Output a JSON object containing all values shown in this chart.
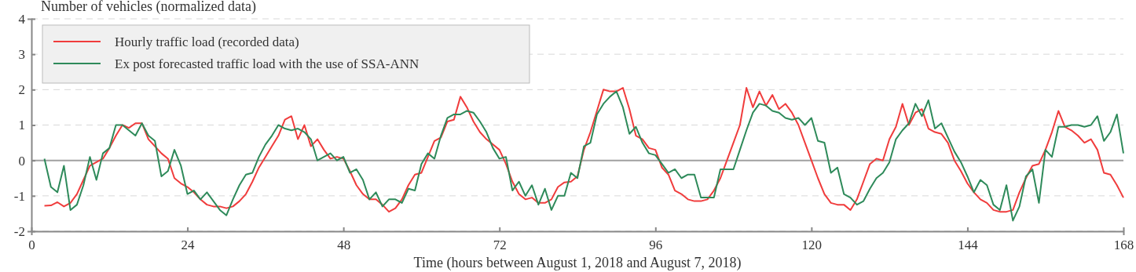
{
  "chart_data": {
    "type": "line",
    "xlabel": "Time (hours between August 1, 2018 and August 7, 2018)",
    "ylabel": "Number of vehicles (normalized data)",
    "xlim": [
      0,
      168
    ],
    "xticks": [
      0,
      24,
      48,
      72,
      96,
      120,
      144,
      168
    ],
    "ylim": [
      -2,
      4
    ],
    "yticks": [
      -2,
      -1,
      0,
      1,
      2,
      3,
      4
    ],
    "grid": "y",
    "legend": "top left",
    "ref_lines": [
      {
        "axis": "y",
        "value": 0,
        "color": "#a0a0a0"
      }
    ],
    "series": [
      {
        "name": "Hourly traffic load (recorded data)",
        "color": "#f03c3c",
        "x": [
          2,
          3,
          4,
          5,
          6,
          7,
          8,
          9,
          10,
          11,
          12,
          13,
          14,
          15,
          16,
          17,
          18,
          19,
          20,
          21,
          22,
          23,
          24,
          25,
          26,
          27,
          28,
          29,
          30,
          31,
          32,
          33,
          34,
          35,
          36,
          37,
          38,
          39,
          40,
          41,
          42,
          43,
          44,
          45,
          46,
          47,
          48,
          49,
          50,
          51,
          52,
          53,
          54,
          55,
          56,
          57,
          58,
          59,
          60,
          61,
          62,
          63,
          64,
          65,
          66,
          67,
          68,
          69,
          70,
          71,
          72,
          73,
          74,
          75,
          76,
          77,
          78,
          79,
          80,
          81,
          82,
          83,
          84,
          85,
          86,
          87,
          88,
          89,
          90,
          91,
          92,
          93,
          94,
          95,
          96,
          97,
          98,
          99,
          100,
          101,
          102,
          103,
          104,
          105,
          106,
          107,
          108,
          109,
          110,
          111,
          112,
          113,
          114,
          115,
          116,
          117,
          118,
          119,
          120,
          121,
          122,
          123,
          124,
          125,
          126,
          127,
          128,
          129,
          130,
          131,
          132,
          133,
          134,
          135,
          136,
          137,
          138,
          139,
          140,
          141,
          142,
          143,
          144,
          145,
          146,
          147,
          148,
          149,
          150,
          151,
          152,
          153,
          154,
          155,
          156,
          157,
          158,
          159,
          160,
          161,
          162,
          163,
          164,
          165,
          166,
          167,
          168
        ],
        "values": [
          -1.28,
          -1.27,
          -1.18,
          -1.3,
          -1.2,
          -0.95,
          -0.55,
          -0.15,
          -0.05,
          0.05,
          0.35,
          0.7,
          1.0,
          0.92,
          1.05,
          1.05,
          0.6,
          0.4,
          0.2,
          0.05,
          -0.5,
          -0.65,
          -0.75,
          -0.9,
          -1.1,
          -1.25,
          -1.3,
          -1.3,
          -1.35,
          -1.3,
          -1.15,
          -0.95,
          -0.6,
          -0.2,
          0.1,
          0.4,
          0.7,
          1.15,
          1.25,
          0.6,
          1.0,
          0.4,
          0.6,
          0.3,
          0.05,
          0.1,
          0.05,
          -0.3,
          -0.7,
          -0.95,
          -1.1,
          -1.1,
          -1.25,
          -1.45,
          -1.35,
          -1.1,
          -0.7,
          -0.4,
          -0.35,
          0.1,
          0.55,
          0.65,
          1.1,
          1.15,
          1.8,
          1.5,
          1.1,
          0.8,
          0.6,
          0.45,
          0.3,
          -0.1,
          -0.6,
          -0.95,
          -1.1,
          -1.05,
          -1.2,
          -1.2,
          -1.1,
          -0.75,
          -0.62,
          -0.6,
          -0.45,
          0.3,
          0.8,
          1.4,
          2.0,
          1.95,
          1.95,
          2.05,
          1.45,
          0.7,
          0.6,
          0.35,
          0.3,
          -0.2,
          -0.4,
          -0.85,
          -0.95,
          -1.1,
          -1.15,
          -1.15,
          -1.1,
          -0.85,
          -0.5,
          0,
          0.5,
          1.0,
          2.05,
          1.5,
          1.95,
          1.55,
          1.85,
          1.45,
          1.6,
          1.35,
          1.0,
          0.5,
          0,
          -0.5,
          -0.95,
          -1.2,
          -1.25,
          -1.25,
          -1.4,
          -1.1,
          -0.6,
          -0.1,
          0.05,
          0,
          0.6,
          0.95,
          1.6,
          1.0,
          1.35,
          1.45,
          0.9,
          0.8,
          0.75,
          0.5,
          0,
          -0.3,
          -0.65,
          -0.9,
          -1.1,
          -1.2,
          -1.4,
          -1.45,
          -1.45,
          -1.4,
          -0.9,
          -0.5,
          -0.15,
          -0.1,
          0.3,
          0.8,
          1.4,
          0.95,
          0.85,
          0.7,
          0.5,
          0.6,
          0.3,
          -0.35,
          -0.4,
          -0.7,
          -1.05
        ]
      },
      {
        "name": "Ex post forecasted traffic load with the use of SSA-ANN",
        "color": "#2e8a5a",
        "x": [
          2,
          3,
          4,
          5,
          6,
          7,
          8,
          9,
          10,
          11,
          12,
          13,
          14,
          15,
          16,
          17,
          18,
          19,
          20,
          21,
          22,
          23,
          24,
          25,
          26,
          27,
          28,
          29,
          30,
          31,
          32,
          33,
          34,
          35,
          36,
          37,
          38,
          39,
          40,
          41,
          42,
          43,
          44,
          45,
          46,
          47,
          48,
          49,
          50,
          51,
          52,
          53,
          54,
          55,
          56,
          57,
          58,
          59,
          60,
          61,
          62,
          63,
          64,
          65,
          66,
          67,
          68,
          69,
          70,
          71,
          72,
          73,
          74,
          75,
          76,
          77,
          78,
          79,
          80,
          81,
          82,
          83,
          84,
          85,
          86,
          87,
          88,
          89,
          90,
          91,
          92,
          93,
          94,
          95,
          96,
          97,
          98,
          99,
          100,
          101,
          102,
          103,
          104,
          105,
          106,
          107,
          108,
          109,
          110,
          111,
          112,
          113,
          114,
          115,
          116,
          117,
          118,
          119,
          120,
          121,
          122,
          123,
          124,
          125,
          126,
          127,
          128,
          129,
          130,
          131,
          132,
          133,
          134,
          135,
          136,
          137,
          138,
          139,
          140,
          141,
          142,
          143,
          144,
          145,
          146,
          147,
          148,
          149,
          150,
          151,
          152,
          153,
          154,
          155,
          156,
          157,
          158,
          159,
          160,
          161,
          162,
          163,
          164,
          165,
          166,
          167,
          168
        ],
        "values": [
          0.05,
          -0.75,
          -0.9,
          -0.15,
          -1.4,
          -1.25,
          -0.7,
          0.1,
          -0.55,
          0.2,
          0.35,
          1.0,
          1.0,
          0.85,
          0.7,
          1.05,
          0.7,
          0.55,
          -0.45,
          -0.3,
          0.3,
          -0.15,
          -0.95,
          -0.85,
          -1.1,
          -0.9,
          -1.15,
          -1.4,
          -1.55,
          -1.1,
          -0.7,
          -0.4,
          -0.35,
          0.1,
          0.45,
          0.7,
          1.0,
          0.9,
          0.85,
          0.9,
          0.8,
          0.6,
          0,
          0.1,
          0.2,
          0,
          0.1,
          -0.35,
          -0.25,
          -0.55,
          -1.1,
          -0.9,
          -1.3,
          -1.1,
          -1.1,
          -1.2,
          -0.8,
          -0.85,
          -0.1,
          0.2,
          0.05,
          0.7,
          1.2,
          1.3,
          1.3,
          1.4,
          1.35,
          1.1,
          0.8,
          0.35,
          0.05,
          0.1,
          -0.85,
          -0.6,
          -1.0,
          -0.7,
          -1.25,
          -0.8,
          -1.4,
          -1.0,
          -1.0,
          -0.35,
          -0.5,
          0.4,
          0.5,
          1.3,
          1.6,
          1.8,
          1.95,
          1.5,
          0.75,
          0.95,
          0.5,
          0.2,
          0.15,
          -0.1,
          -0.35,
          -0.25,
          -0.5,
          -0.4,
          -0.4,
          -1.05,
          -1.05,
          -1.05,
          -0.25,
          -0.25,
          -0.25,
          0.3,
          0.85,
          1.35,
          1.6,
          1.55,
          1.4,
          1.35,
          1.2,
          1.15,
          1.2,
          1.0,
          1.2,
          0.55,
          0.5,
          -0.35,
          -0.2,
          -0.95,
          -1.05,
          -1.25,
          -1.15,
          -0.8,
          -0.5,
          -0.35,
          -0.05,
          0.6,
          0.85,
          1.05,
          1.6,
          1.25,
          1.7,
          0.9,
          1.05,
          0.65,
          0.25,
          -0.05,
          -0.45,
          -0.9,
          -0.55,
          -0.7,
          -1.25,
          -1.4,
          -0.7,
          -1.7,
          -1.3,
          -0.45,
          -0.25,
          -1.2,
          0.3,
          0.1,
          0.95,
          0.95,
          1.0,
          1.0,
          0.95,
          1.0,
          1.25,
          0.55,
          0.8,
          1.3,
          0.2
        ]
      }
    ]
  }
}
